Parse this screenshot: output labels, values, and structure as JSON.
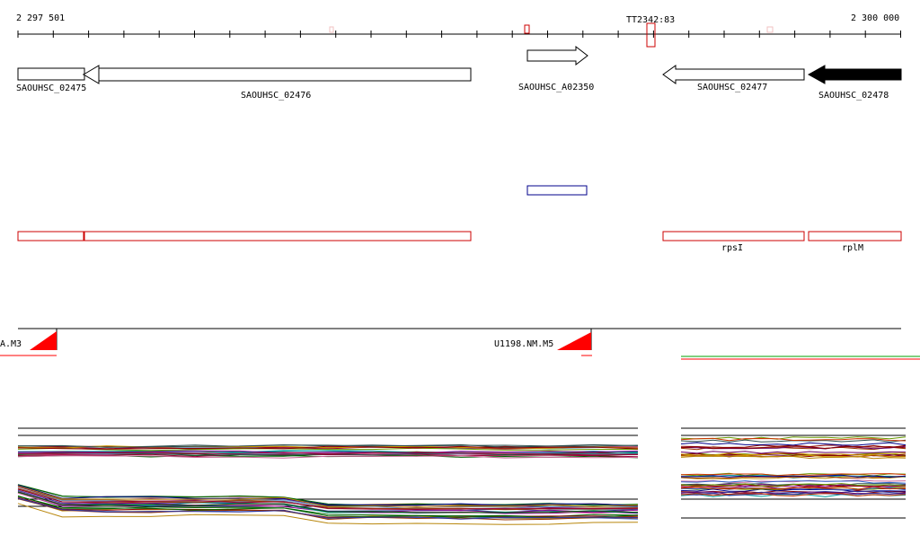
{
  "ruler": {
    "start_label": "2 297 501",
    "end_label": "2 300 000",
    "marker_label": "TT2342:83"
  },
  "genes": [
    {
      "id": "g1",
      "label": "SAOUHSC_02475",
      "strand": "forward",
      "filled": false
    },
    {
      "id": "g2",
      "label": "SAOUHSC_02476",
      "strand": "reverse",
      "filled": false
    },
    {
      "id": "g3",
      "label": "SAOUHSC_A02350",
      "strand": "forward",
      "filled": false
    },
    {
      "id": "g4",
      "label": "SAOUHSC_02477",
      "strand": "reverse",
      "filled": false
    },
    {
      "id": "g5",
      "label": "SAOUHSC_02478",
      "strand": "reverse",
      "filled": true
    }
  ],
  "annotations": [
    {
      "id": "a1",
      "label": ""
    },
    {
      "id": "a2",
      "label": ""
    },
    {
      "id": "a3",
      "label": "rpsI"
    },
    {
      "id": "a4",
      "label": "rplM"
    }
  ],
  "peaks": [
    {
      "id": "p1",
      "label": "A.M3"
    },
    {
      "id": "p2",
      "label": "U1198.NM.M5"
    }
  ],
  "colors": {
    "gene_outline": "#000000",
    "gene_filled": "#000000",
    "annotation": "#cc0000",
    "blue_feature": "#00008b",
    "peak": "#ff0000",
    "marker": "#cc0000",
    "green_line": "#00a000"
  },
  "icons": {
    "forward_gene": "arrow-right-icon",
    "reverse_gene": "arrow-left-icon",
    "peak": "peak-triangle-icon"
  }
}
